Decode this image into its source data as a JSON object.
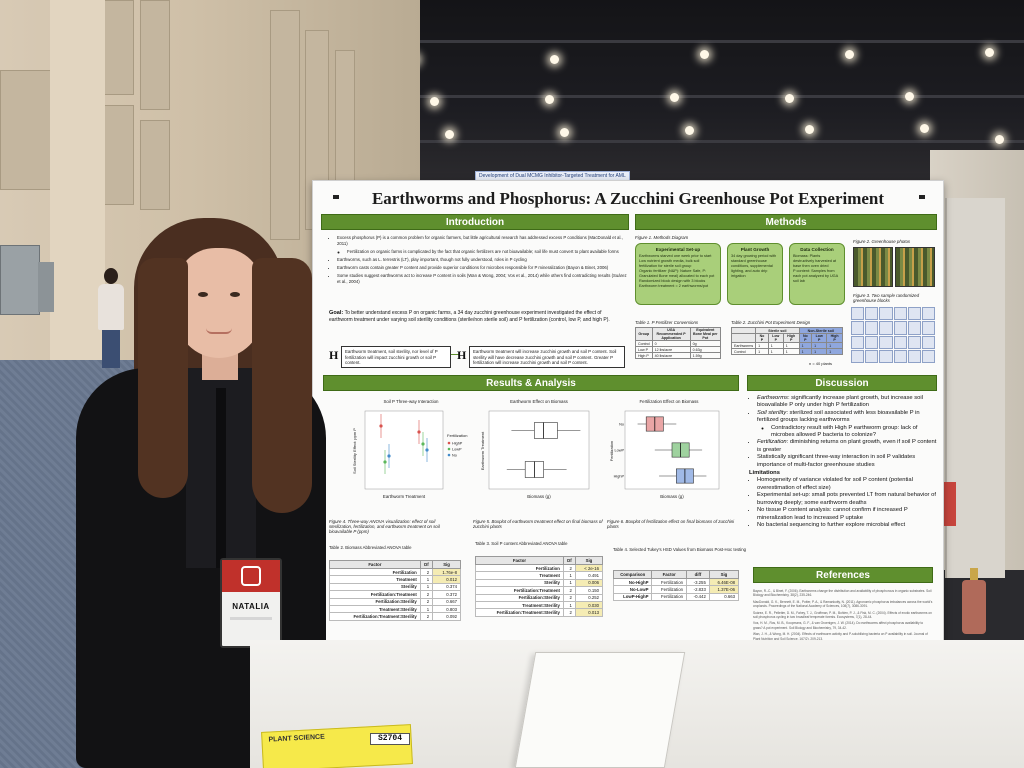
{
  "scene": {
    "bg_tag": "Development of Dual MCMG Inhibitor-Targeted Treatment for AML",
    "yellow_card": {
      "label": "PLANT SCIENCE",
      "ticket": "S2704"
    },
    "badge": {
      "name": "NATALIA"
    }
  },
  "poster": {
    "title": "Earthworms and Phosphorus: A Zucchini Greenhouse Pot Experiment",
    "sections": {
      "introduction": "Introduction",
      "methods": "Methods",
      "results": "Results & Analysis",
      "discussion": "Discussion",
      "references": "References"
    },
    "introduction": {
      "bullets": [
        "Excess phosphorus (P) is a common problem for organic farmers, but little agricultural research has addressed excess P conditions (MacDonald et al., 2011)",
        "Fertilization on organic farms is complicated by the fact that organic fertilizers are not bioavailable; soil life must convert to plant available forms",
        "Earthworms, such as L. terrestris (LT), play important, though not fully understood, roles in P cycling",
        "Earthworm casts contain greater P content and provide superior conditions for microbes responsible for P mineralization (Bayon & Binet, 2006)",
        "Some studies suggest earthworms act to increase P content in soils (Wan & Wong, 2004; Vos et al., 2014) while others find contradicting results (Suárez et al., 2004)"
      ],
      "goal_label": "Goal:",
      "goal": "To better understand excess P on organic farms, a 34 day zucchini greenhouse experiment investigated the effect of earthworm treatment under varying soil sterility conditions (sterile/non sterile soil) and P fertilization (control, low P, and high P).",
      "h0": "Earthworm treatment, soil sterility, nor level of P fertilization will impact zucchini growth or soil P content.",
      "h1": "Earthworm treatment will increase zucchini growth and soil P content. Soil sterility will have decrease zucchini growth and soil P content. Greater P fertilization will increase zucchini growth and soil P content.",
      "h0_sym": "H",
      "h1_sym": "H"
    },
    "methods": {
      "fig1_caption": "Figure 1. Methods Diagram",
      "box1": {
        "title": "Experimental Set-up",
        "lines": [
          "Earthworms starved one week prior to start",
          "Low nutrient growth media, bulk soil fertilization for sterile soil group",
          "Organic fertilizer (N&P): Nature Safe, P: Granulated Bone meal) allocated to each pot",
          "Randomized block design with 3 blocks",
          "Earthworm treatment = 2 earthworms/pot"
        ]
      },
      "box2": {
        "title": "Plant Growth",
        "lines": [
          "34 day growing period with standard greenhouse conditions, supplemental lighting, and auto drip irrigation"
        ]
      },
      "box3": {
        "title": "Data Collection",
        "lines": [
          "Biomass: Plants destructively harvested at base then oven dried",
          "P content: Samples from each pot analyzed by UGA soil lab"
        ]
      },
      "fig2_caption": "Figure 2. Greenhouse photos",
      "fig3_caption": "Figure 3. Two sample randomized greenhouse blocks",
      "table1_caption": "Table 1. P Fertilizer Conversions",
      "table1": {
        "headers": [
          "Group",
          "UGA Recommended P Application",
          "Equivalent Bone Meal per Pot"
        ],
        "rows": [
          [
            "Control",
            "0",
            "0g"
          ],
          [
            "Low P",
            "12 lbs/acre",
            "0.63g"
          ],
          [
            "High P",
            "40 lbs/acre",
            "1.59g"
          ]
        ]
      },
      "table2_caption": "Table 2. Zucchini Pot Experiment Design",
      "table2": {
        "group_sterile": "Sterile soil",
        "group_nonsterile": "Non-Sterile soil",
        "headers": [
          "",
          "No P",
          "Low P",
          "High P",
          "No P",
          "Low P",
          "High P"
        ],
        "rows": [
          [
            "Earthworms",
            "1",
            "1",
            "1",
            "1",
            "1",
            "1"
          ],
          [
            "Control",
            "1",
            "1",
            "1",
            "1",
            "1",
            "1"
          ]
        ]
      },
      "n_note": "n = 40 plants"
    },
    "results": {
      "charts": [
        {
          "title": "Soil P Three-way Interaction",
          "xlabel": "Earthworm Treatment",
          "ylabel": "Soil Sterility Effect: ppm P",
          "legend_title": "Fertilization",
          "legend": [
            "HighP",
            "LowP",
            "No"
          ]
        },
        {
          "title": "Earthworm Effect on Biomass",
          "xlabel": "Biomass (g)",
          "ylabel": "Earthworm Treatment"
        },
        {
          "title": "Fertilization Effect on Biomass",
          "xlabel": "Biomass (g)",
          "ylabel": "Fertilization",
          "categories": [
            "No",
            "LowP",
            "HighP"
          ]
        }
      ],
      "fig4_caption": "Figure 4. Three-way ANOVA visualization: effect of soil sterilization, fertilization, and earthworm treatment on soil bioavailable P (ppm)",
      "fig5_caption": "Figure 5. Boxplot of earthworm treatment effect on final biomass of zucchini plants",
      "fig6_caption": "Figure 6. Boxplot of fertilization effect on final biomass of zucchini plants",
      "table2_caption": "Table 2. Biomass Abbreviated ANOVA table",
      "table3_caption": "Table 3. Soil P content Abbreviated ANOVA table",
      "table4_caption": "Table 4. Selected Tukey's HSD Values from Biomass Post-Hoc testing",
      "anova_headers": [
        "Factor",
        "Df",
        "Sig"
      ],
      "biomass_anova": [
        [
          "Fertilization",
          "2",
          "1.76e-8"
        ],
        [
          "Treatment",
          "1",
          "0.012"
        ],
        [
          "Sterility",
          "1",
          "0.374"
        ],
        [
          "Fertilization:Treatment",
          "2",
          "0.372"
        ],
        [
          "Fertilization:Sterility",
          "2",
          "0.667"
        ],
        [
          "Treatment:Sterility",
          "1",
          "0.803"
        ],
        [
          "Fertilization:Treatment:Sterility",
          "2",
          "0.092"
        ]
      ],
      "soilp_anova": [
        [
          "Fertilization",
          "2",
          "< 2e-16"
        ],
        [
          "Treatment",
          "1",
          "0.491"
        ],
        [
          "Sterility",
          "1",
          "0.006"
        ],
        [
          "Fertilization:Treatment",
          "2",
          "0.150"
        ],
        [
          "Fertilization:Sterility",
          "2",
          "0.252"
        ],
        [
          "Treatment:Sterility",
          "1",
          "0.030"
        ],
        [
          "Fertilization:Treatment:Sterility",
          "2",
          "0.013"
        ]
      ],
      "tukey_headers": [
        "Comparison",
        "Factor",
        "diff",
        "Sig"
      ],
      "tukey": [
        [
          "No-HighP",
          "Fertilization",
          "-3.255",
          "6.46E-08"
        ],
        [
          "No-LowP",
          "Fertilization",
          "-2.833",
          "1.37E-06"
        ],
        [
          "LowP-HighP",
          "Fertilization",
          "-0.442",
          "0.663"
        ]
      ],
      "footnote": "All tables, graphs, photos and diagrams are the product of the student researcher"
    },
    "discussion": {
      "bullets": [
        {
          "lead": "Earthworms",
          "text": ": significantly increase plant growth, but increase soil bioavailable P only under high P fertilization"
        },
        {
          "lead": "Soil sterility",
          "text": ": sterilized soil associated with less bioavailable P in fertilized groups lacking earthworms"
        },
        {
          "lead": "",
          "text": "Contradictory result with High P earthworm group: lack of microbes allowed P bacteria to colonize?",
          "sub": true
        },
        {
          "lead": "Fertilization",
          "text": ": diminishing returns on plant growth, even if soil P content is greater"
        },
        {
          "lead": "",
          "text": "Statistically significant three-way interaction in soil P validates importance of multi-factor greenhouse studies"
        }
      ],
      "limitations_label": "Limitations",
      "limitations": [
        "Homogeneity of variance violated for soil P content (potential overestimation of effect size)",
        "Experimental set-up: small pots prevented LT from natural behavior of burrowing deeply; some earthworm deaths",
        "No tissue P content analysis: cannot confirm if increased P mineralization lead to increased P uptake",
        "No bacterial sequencing to further explore microbial effect"
      ]
    },
    "references": [
      "Bayon, R.-C., & Binet, F. (2006). Earthworms change the distribution and availability of phosphorous in organic substrates. Soil Biology and Biochemistry, 38(2), 235-246.",
      "MacDonald, G. K., Bennett, E. M., Potter, P. A., & Ramankutty, N. (2011). Agronomic phosphorus imbalances across the world's croplands. Proceedings of the National Academy of Sciences, 108(7), 3086-3091.",
      "Suárez, E. R., Pelletier, D. M., Fahey, T. J., Groffman, P. M., Bohlen, P. J., & Fisk, M. C. (2004). Effects of exotic earthworms on soil phosphorus cycling in two broadleaf temperate forests. Ecosystems, 7(1), 28-44.",
      "Vos, H. M., Ros, M. B., Koopmans, G. F., & van Groenigen, J. W. (2014). Do earthworms affect phosphorus availability to grass? A pot experiment. Soil Biology and Biochemistry, 79, 34-42.",
      "Wan, J. H., & Wong, M. H. (2004). Effects of earthworm activity and P-solubilizing bacteria on P availability in soil. Journal of Plant Nutrition and Soil Science, 167(2), 209-213."
    ]
  },
  "chart_data": [
    {
      "type": "scatter",
      "title": "Soil P Three-way Interaction",
      "xlabel": "Earthworm Treatment",
      "ylabel": "Soil Sterility Effect: ppm P",
      "legend_title": "Fertilization",
      "series": [
        {
          "name": "HighP",
          "color": "#d9534f",
          "values": [
            4,
            3
          ]
        },
        {
          "name": "LowP",
          "color": "#5cb85c",
          "values": [
            -2,
            1
          ]
        },
        {
          "name": "No",
          "color": "#428bca",
          "values": [
            -1,
            0
          ]
        }
      ]
    },
    {
      "type": "box",
      "title": "Earthworm Effect on Biomass",
      "xlabel": "Biomass (g)",
      "ylabel": "Earthworm Treatment",
      "boxes": [
        {
          "min": 0.2,
          "q1": 0.45,
          "median": 0.55,
          "q3": 0.7,
          "max": 0.95
        },
        {
          "min": 0.15,
          "q1": 0.35,
          "median": 0.45,
          "q3": 0.55,
          "max": 0.8
        }
      ]
    },
    {
      "type": "box",
      "title": "Fertilization Effect on Biomass",
      "xlabel": "Biomass (g)",
      "ylabel": "Fertilization",
      "categories": [
        "No",
        "LowP",
        "HighP"
      ],
      "boxes": [
        {
          "min": 0.1,
          "q1": 0.2,
          "median": 0.3,
          "q3": 0.4,
          "max": 0.55,
          "color": "#e9a5a5"
        },
        {
          "min": 0.3,
          "q1": 0.5,
          "median": 0.6,
          "q3": 0.7,
          "max": 0.85,
          "color": "#9fd29f"
        },
        {
          "min": 0.35,
          "q1": 0.55,
          "median": 0.65,
          "q3": 0.75,
          "max": 0.9,
          "color": "#a0b9e6"
        }
      ]
    }
  ]
}
